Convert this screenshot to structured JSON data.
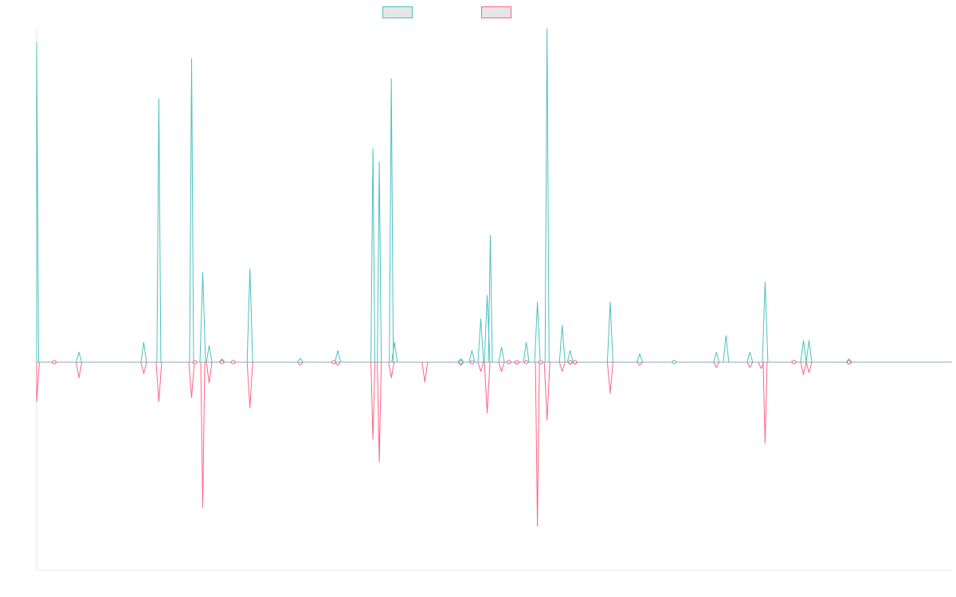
{
  "chart_data": {
    "type": "line",
    "title": "",
    "xlabel": "",
    "ylabel": "",
    "legend_position": "top",
    "grid": false,
    "x_range": [
      0,
      1146
    ],
    "ylim": [
      -1,
      1
    ],
    "series": [
      {
        "name": "",
        "color": "#4bc0c0",
        "spikes": [
          [
            0,
            0.96
          ],
          [
            22,
            0.003
          ],
          [
            53,
            0.03
          ],
          [
            134,
            0.06
          ],
          [
            153,
            0.79
          ],
          [
            194,
            0.91
          ],
          [
            198,
            0.003
          ],
          [
            208,
            0.27
          ],
          [
            216,
            0.05
          ],
          [
            232,
            0.01
          ],
          [
            246,
            0.005
          ],
          [
            267,
            0.28
          ],
          [
            330,
            0.012
          ],
          [
            372,
            0.005
          ],
          [
            377,
            0.035
          ],
          [
            421,
            0.64
          ],
          [
            429,
            0.6
          ],
          [
            444,
            0.85
          ],
          [
            448,
            0.06
          ],
          [
            531,
            0.01
          ],
          [
            545,
            0.035
          ],
          [
            556,
            0.13
          ],
          [
            564,
            0.2
          ],
          [
            568,
            0.38
          ],
          [
            582,
            0.045
          ],
          [
            591,
            0.005
          ],
          [
            601,
            0.005
          ],
          [
            613,
            0.06
          ],
          [
            627,
            0.18
          ],
          [
            631,
            0.003
          ],
          [
            639,
            1.0
          ],
          [
            658,
            0.11
          ],
          [
            668,
            0.035
          ],
          [
            674,
            0.005
          ],
          [
            718,
            0.18
          ],
          [
            755,
            0.025
          ],
          [
            798,
            0.005
          ],
          [
            851,
            0.03
          ],
          [
            863,
            0.08
          ],
          [
            893,
            0.03
          ],
          [
            912,
            0.24
          ],
          [
            948,
            0.005
          ],
          [
            960,
            0.065
          ],
          [
            967,
            0.065
          ],
          [
            1017,
            0.01
          ]
        ]
      },
      {
        "name": "",
        "color": "#ff6384",
        "spikes": [
          [
            0,
            -0.19
          ],
          [
            22,
            -0.005
          ],
          [
            53,
            -0.075
          ],
          [
            134,
            -0.055
          ],
          [
            153,
            -0.19
          ],
          [
            194,
            -0.17
          ],
          [
            198,
            -0.005
          ],
          [
            208,
            -0.7
          ],
          [
            216,
            -0.1
          ],
          [
            232,
            -0.005
          ],
          [
            246,
            -0.005
          ],
          [
            267,
            -0.22
          ],
          [
            330,
            -0.015
          ],
          [
            372,
            -0.005
          ],
          [
            377,
            -0.015
          ],
          [
            421,
            -0.37
          ],
          [
            429,
            -0.48
          ],
          [
            444,
            -0.075
          ],
          [
            486,
            -0.095
          ],
          [
            531,
            -0.015
          ],
          [
            545,
            -0.005
          ],
          [
            556,
            -0.045
          ],
          [
            564,
            -0.245
          ],
          [
            582,
            -0.045
          ],
          [
            591,
            -0.005
          ],
          [
            601,
            -0.01
          ],
          [
            613,
            -0.005
          ],
          [
            627,
            -0.79
          ],
          [
            631,
            -0.005
          ],
          [
            639,
            -0.28
          ],
          [
            658,
            -0.045
          ],
          [
            668,
            -0.01
          ],
          [
            674,
            -0.01
          ],
          [
            718,
            -0.15
          ],
          [
            755,
            -0.015
          ],
          [
            851,
            -0.025
          ],
          [
            893,
            -0.025
          ],
          [
            907,
            -0.03
          ],
          [
            912,
            -0.39
          ],
          [
            948,
            -0.005
          ],
          [
            960,
            -0.06
          ],
          [
            967,
            -0.05
          ],
          [
            1017,
            -0.01
          ]
        ]
      }
    ]
  }
}
